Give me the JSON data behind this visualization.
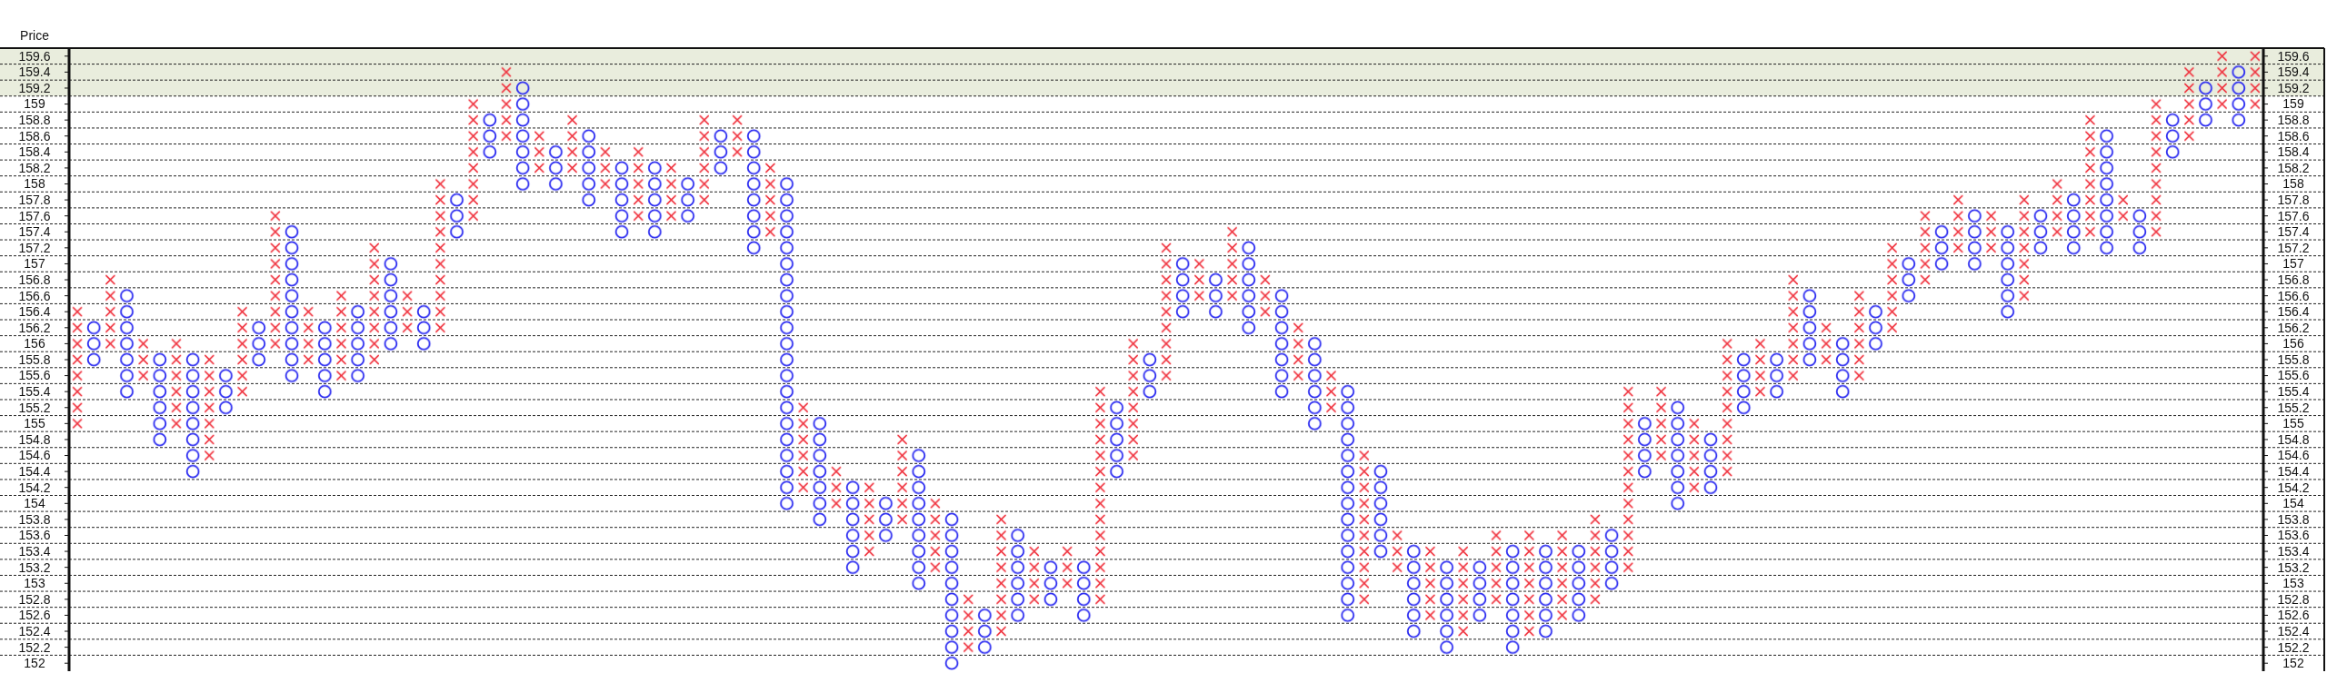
{
  "chart_data": {
    "type": "bar",
    "title": "Price",
    "grid": "y",
    "tick_labels": "y",
    "categories": [
      null,
      null,
      null,
      null,
      null,
      null,
      null,
      null,
      null,
      null,
      null,
      null,
      null,
      null,
      null,
      null,
      null,
      null,
      null,
      null,
      null,
      null,
      null,
      null,
      null,
      null,
      null,
      null,
      null,
      null,
      null,
      null,
      null,
      null,
      null,
      null,
      null,
      null,
      null,
      null,
      null,
      null,
      null,
      null,
      null,
      null,
      null,
      null,
      null,
      null,
      null,
      null,
      null,
      null,
      null,
      null,
      null,
      null,
      null,
      null,
      null,
      null,
      null,
      null,
      null,
      null,
      null,
      null,
      null,
      null,
      null,
      null,
      null,
      null,
      null,
      null,
      null,
      null,
      null,
      null,
      null,
      null,
      null,
      null,
      null,
      null,
      null,
      null,
      null,
      null,
      null,
      null,
      null,
      null,
      null,
      null,
      null,
      null,
      null,
      null,
      null,
      null,
      null,
      null,
      null,
      null,
      null,
      null,
      null,
      null,
      null,
      null,
      null,
      null,
      null,
      null,
      null,
      null,
      null,
      null,
      null,
      null,
      null,
      null,
      null,
      null,
      null,
      null,
      null,
      null,
      null,
      null,
      null
    ],
    "series": [
      {
        "color": "#f0303c",
        "marker": "cross",
        "base": [
          154.9,
          null,
          155.9,
          null,
          155.5,
          null,
          154.9,
          null,
          154.5,
          null,
          155.3,
          null,
          155.9,
          null,
          155.7,
          null,
          155.5,
          null,
          155.7,
          null,
          156.1,
          null,
          156.1,
          null,
          157.5,
          null,
          158.5,
          null,
          158.1,
          null,
          158.1,
          null,
          157.9,
          null,
          157.5,
          null,
          157.5,
          null,
          157.7,
          null,
          158.3,
          null,
          157.3,
          null,
          154.1,
          null,
          153.9,
          null,
          153.3,
          null,
          153.7,
          null,
          153.1,
          null,
          152.1,
          null,
          152.3,
          null,
          152.7,
          null,
          152.9,
          null,
          152.7,
          null,
          154.5,
          null,
          155.5,
          null,
          156.5,
          null,
          156.5,
          null,
          156.3,
          null,
          155.5,
          null,
          155.1,
          null,
          152.7,
          null,
          153.1,
          null,
          152.5,
          null,
          152.3,
          null,
          152.7,
          null,
          152.3,
          null,
          152.5,
          null,
          152.7,
          null,
          153.1,
          null,
          154.5,
          null,
          154.1,
          null,
          154.3,
          null,
          155.3,
          null,
          155.5,
          null,
          155.7,
          null,
          155.5,
          null,
          156.1,
          null,
          156.7,
          null,
          157.1,
          null,
          157.1,
          null,
          156.5,
          null,
          157.3,
          null,
          157.3,
          null,
          157.5,
          null,
          157.3,
          null,
          158.5,
          null,
          158.9,
          null,
          158.9
        ],
        "values": [
          1.6,
          null,
          1.0,
          null,
          0.6,
          null,
          1.2,
          null,
          1.4,
          null,
          1.2,
          null,
          1.8,
          null,
          0.8,
          null,
          1.2,
          null,
          1.6,
          null,
          0.6,
          null,
          2.0,
          null,
          1.6,
          null,
          1.0,
          null,
          0.6,
          null,
          0.8,
          null,
          0.6,
          null,
          1.0,
          null,
          0.8,
          null,
          1.2,
          null,
          0.6,
          null,
          1.0,
          null,
          1.2,
          null,
          0.6,
          null,
          1.0,
          null,
          1.2,
          null,
          1.0,
          null,
          0.8,
          null,
          1.6,
          null,
          0.8,
          null,
          0.6,
          null,
          2.8,
          null,
          1.6,
          null,
          1.8,
          null,
          0.6,
          null,
          1.0,
          null,
          0.6,
          null,
          0.8,
          null,
          0.6,
          null,
          2.0,
          null,
          0.6,
          null,
          1.0,
          null,
          1.2,
          null,
          1.0,
          null,
          1.4,
          null,
          1.2,
          null,
          1.2,
          null,
          2.4,
          null,
          1.0,
          null,
          1.0,
          null,
          1.8,
          null,
          0.8,
          null,
          1.4,
          null,
          0.6,
          null,
          1.2,
          null,
          1.2,
          null,
          1.0,
          null,
          0.8,
          null,
          0.6,
          null,
          1.4,
          null,
          0.8,
          null,
          1.6,
          null,
          0.4,
          null,
          1.8,
          null,
          1.0,
          null,
          0.8,
          null,
          0.8
        ]
      },
      {
        "color": "#2a2af0",
        "marker": "circle",
        "base": [
          null,
          155.7,
          null,
          155.3,
          null,
          154.7,
          null,
          154.3,
          null,
          155.1,
          null,
          155.7,
          null,
          155.5,
          null,
          155.3,
          null,
          155.5,
          null,
          155.9,
          null,
          155.9,
          null,
          157.3,
          null,
          158.3,
          null,
          157.9,
          null,
          157.9,
          null,
          157.7,
          null,
          157.3,
          null,
          157.3,
          null,
          157.5,
          null,
          158.1,
          null,
          157.1,
          null,
          153.9,
          null,
          153.7,
          null,
          153.1,
          null,
          153.5,
          null,
          152.9,
          null,
          151.9,
          null,
          152.1,
          null,
          152.5,
          null,
          152.7,
          null,
          152.5,
          null,
          154.3,
          null,
          155.3,
          null,
          156.3,
          null,
          156.3,
          null,
          156.1,
          null,
          155.3,
          null,
          154.9,
          null,
          152.5,
          null,
          153.3,
          null,
          152.3,
          null,
          152.1,
          null,
          152.5,
          null,
          152.1,
          null,
          152.3,
          null,
          152.5,
          null,
          152.9,
          null,
          154.3,
          null,
          153.9,
          null,
          154.1,
          null,
          155.1,
          null,
          155.3,
          null,
          155.7,
          null,
          155.3,
          null,
          155.9,
          null,
          156.5,
          null,
          156.9,
          null,
          156.9,
          null,
          156.3,
          null,
          157.1,
          null,
          157.1,
          null,
          157.1,
          null,
          157.1,
          null,
          158.3,
          null,
          158.7,
          null,
          158.7,
          null
        ],
        "values": [
          null,
          0.6,
          null,
          1.4,
          null,
          1.2,
          null,
          1.6,
          null,
          0.6,
          null,
          0.6,
          null,
          2.0,
          null,
          1.0,
          null,
          1.0,
          null,
          1.2,
          null,
          0.6,
          null,
          0.6,
          null,
          0.6,
          null,
          1.4,
          null,
          0.6,
          null,
          1.0,
          null,
          1.0,
          null,
          1.0,
          null,
          0.6,
          null,
          0.6,
          null,
          1.6,
          null,
          4.2,
          null,
          1.4,
          null,
          1.2,
          null,
          0.6,
          null,
          1.8,
          null,
          2.0,
          null,
          0.6,
          null,
          1.2,
          null,
          0.6,
          null,
          0.8,
          null,
          1.0,
          null,
          0.6,
          null,
          0.8,
          null,
          0.6,
          null,
          1.2,
          null,
          1.4,
          null,
          1.2,
          null,
          3.0,
          null,
          1.2,
          null,
          1.2,
          null,
          1.2,
          null,
          0.8,
          null,
          1.4,
          null,
          1.2,
          null,
          1.0,
          null,
          0.8,
          null,
          0.8,
          null,
          1.4,
          null,
          0.8,
          null,
          0.8,
          null,
          0.6,
          null,
          1.0,
          null,
          0.8,
          null,
          0.6,
          null,
          0.6,
          null,
          0.6,
          null,
          0.8,
          null,
          1.2,
          null,
          0.6,
          null,
          0.8,
          null,
          1.6,
          null,
          0.6,
          null,
          0.6,
          null,
          0.6,
          null,
          0.8,
          null
        ]
      }
    ],
    "ylim": [
      151.9,
      159.7
    ],
    "yticks": [
      152,
      {
        "value": 152.1,
        "label": null
      },
      152.2,
      {
        "value": 152.3,
        "label": null
      },
      152.4,
      {
        "value": 152.5,
        "label": null
      },
      152.6,
      {
        "value": 152.7,
        "label": null
      },
      152.8,
      {
        "value": 152.9,
        "label": null
      },
      153,
      {
        "value": 153.1,
        "label": null
      },
      153.2,
      {
        "value": 153.3,
        "label": null
      },
      153.4,
      {
        "value": 153.5,
        "label": null
      },
      153.6,
      {
        "value": 153.7,
        "label": null
      },
      153.8,
      {
        "value": 153.9,
        "label": null
      },
      154,
      {
        "value": 154.1,
        "label": null
      },
      154.2,
      {
        "value": 154.3,
        "label": null
      },
      154.4,
      {
        "value": 154.5,
        "label": null
      },
      154.6,
      {
        "value": 154.7,
        "label": null
      },
      154.8,
      {
        "value": 154.9,
        "label": null
      },
      155,
      {
        "value": 155.1,
        "label": null
      },
      155.2,
      {
        "value": 155.3,
        "label": null
      },
      155.4,
      {
        "value": 155.5,
        "label": null
      },
      155.6,
      {
        "value": 155.7,
        "label": null
      },
      155.8,
      {
        "value": 155.9,
        "label": null
      },
      156,
      {
        "value": 156.1,
        "label": null
      },
      156.2,
      {
        "value": 156.3,
        "label": null
      },
      156.4,
      {
        "value": 156.5,
        "label": null
      },
      156.6,
      {
        "value": 156.7,
        "label": null
      },
      156.8,
      {
        "value": 156.9,
        "label": null
      },
      157,
      {
        "value": 157.1,
        "label": null
      },
      157.2,
      {
        "value": 157.3,
        "label": null
      },
      157.4,
      {
        "value": 157.5,
        "label": null
      },
      157.6,
      {
        "value": 157.7,
        "label": null
      },
      157.8,
      {
        "value": 157.9,
        "label": null
      },
      158,
      {
        "value": 158.1,
        "label": null
      },
      158.2,
      {
        "value": 158.3,
        "label": null
      },
      158.4,
      {
        "value": 158.5,
        "label": null
      },
      158.6,
      {
        "value": 158.7,
        "label": null
      },
      158.8,
      {
        "value": 158.9,
        "label": null
      },
      159,
      {
        "value": 159.1,
        "label": null
      },
      159.2,
      {
        "value": 159.3,
        "label": null
      },
      159.4,
      {
        "value": 159.5,
        "label": null
      },
      159.6
    ],
    "y2lim": [
      151.9,
      159.7
    ],
    "y2ticks": [
      152,
      152.2,
      152.4,
      152.6,
      152.8,
      153,
      153.2,
      153.4,
      153.6,
      153.8,
      154,
      154.2,
      154.4,
      154.6,
      154.8,
      155,
      155.2,
      155.4,
      155.6,
      155.8,
      156,
      156.2,
      156.4,
      156.6,
      156.8,
      157,
      157.2,
      157.4,
      157.6,
      157.8,
      158,
      158.2,
      158.4,
      158.6,
      158.8,
      159,
      159.2,
      159.4,
      159.6
    ],
    "bands": [
      {
        "axis": "y",
        "from": 159.1,
        "to": 159.7,
        "color": "#e9eddd"
      }
    ]
  }
}
